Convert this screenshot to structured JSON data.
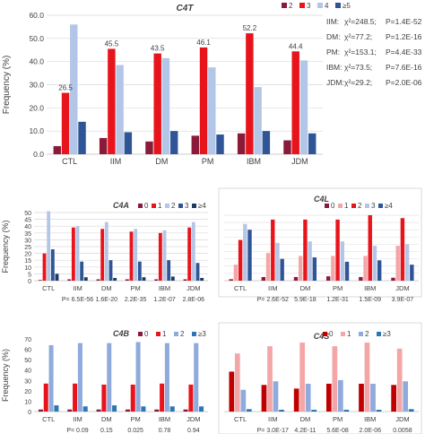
{
  "chart_data": [
    {
      "type": "bar",
      "title": "C4T",
      "ylabel": "Frequency (%)",
      "xlabel": "",
      "ylim": [
        0,
        60
      ],
      "yticks": [
        "0.0",
        "10.0",
        "20.0",
        "30.0",
        "40.0",
        "50.0",
        "60.0"
      ],
      "categories": [
        "CTL",
        "IIM",
        "DM",
        "PM",
        "IBM",
        "JDM"
      ],
      "legend_position": "top-right",
      "series": [
        {
          "name": "2",
          "color": "#8b1a3a",
          "values": [
            3.5,
            7.0,
            5.5,
            8.0,
            9.0,
            6.0
          ]
        },
        {
          "name": "3",
          "color": "#e8141c",
          "values": [
            26.5,
            45.5,
            43.5,
            46.1,
            52.2,
            44.4
          ]
        },
        {
          "name": "4",
          "color": "#b4c6e7",
          "values": [
            56.0,
            38.5,
            41.5,
            37.5,
            29.0,
            40.5
          ]
        },
        {
          "name": "≥5",
          "color": "#2f5597",
          "values": [
            14.0,
            9.5,
            10.0,
            8.5,
            10.0,
            9.0
          ]
        }
      ],
      "data_labels": [
        "26.5",
        "45.5",
        "43.5",
        "46.1",
        "52.2",
        "44.4"
      ],
      "annotations": [
        {
          "group": "IIM:",
          "chi": "χ²=248.5;",
          "p": "P=1.4E-52"
        },
        {
          "group": "DM:",
          "chi": "χ²=77.2;",
          "p": "P=1.2E-16"
        },
        {
          "group": "PM:",
          "chi": "χ²=153.1;",
          "p": "P=4.4E-33"
        },
        {
          "group": "IBM:",
          "chi": "χ²=73.5;",
          "p": "P=7.6E-16"
        },
        {
          "group": "JDM:",
          "chi": "χ²=29.2;",
          "p": "P=2.0E-06"
        }
      ]
    },
    {
      "type": "bar",
      "title": "C4A",
      "ylabel": "Frequency (%)",
      "ylim": [
        0,
        50
      ],
      "yticks": [
        "0",
        "5",
        "10",
        "15",
        "20",
        "25",
        "30",
        "35",
        "40",
        "45",
        "50"
      ],
      "categories": [
        "CTL",
        "IIM",
        "DM",
        "PM",
        "IBM",
        "JDM"
      ],
      "legend_position": "top-right",
      "series": [
        {
          "name": "0",
          "color": "#8b1a3a",
          "values": [
            0.5,
            1,
            1,
            1,
            1,
            1
          ]
        },
        {
          "name": "1",
          "color": "#e8141c",
          "values": [
            20,
            39,
            38,
            36,
            35,
            39
          ]
        },
        {
          "name": "2",
          "color": "#b4c6e7",
          "values": [
            51,
            40,
            43,
            38,
            37,
            43
          ]
        },
        {
          "name": "3",
          "color": "#2f5597",
          "values": [
            23,
            14,
            15,
            14,
            15,
            13
          ]
        },
        {
          "name": "≥4",
          "color": "#1f3864",
          "values": [
            5,
            2.5,
            2,
            2.5,
            3,
            2
          ]
        }
      ],
      "pvalues": [
        "P= 6.5E-56",
        "1.6E-20",
        "2.2E-35",
        "1.2E-07",
        "2.8E-06"
      ]
    },
    {
      "type": "bar",
      "title": "C4L",
      "ylim": [
        0,
        45
      ],
      "categories": [
        "CTL",
        "IIM",
        "DM",
        "PM",
        "IBM",
        "JDM"
      ],
      "legend_position": "top-right",
      "series": [
        {
          "name": "0",
          "color": "#8b1a3a",
          "values": [
            1,
            2.5,
            2.5,
            3,
            2.5,
            2
          ]
        },
        {
          "name": "1",
          "color": "#f4a6a6",
          "values": [
            11,
            19,
            17,
            17,
            17,
            24
          ]
        },
        {
          "name": "2",
          "color": "#e8141c",
          "values": [
            28,
            42,
            42,
            42,
            45,
            43
          ]
        },
        {
          "name": "3",
          "color": "#b4c6e7",
          "values": [
            39,
            26,
            27,
            27,
            24,
            25
          ]
        },
        {
          "name": "≥4",
          "color": "#2f5597",
          "values": [
            35,
            15,
            16,
            13,
            14,
            11
          ]
        }
      ],
      "pvalues": [
        "P= 2.6E-52",
        "5.9E-18",
        "1.2E-31",
        "1.5E-09",
        "3.9E-07"
      ]
    },
    {
      "type": "bar",
      "title": "C4B",
      "ylabel": "Frequency (%)",
      "ylim": [
        0,
        70
      ],
      "yticks": [
        "0",
        "10",
        "20",
        "30",
        "40",
        "50",
        "60",
        "70"
      ],
      "categories": [
        "CTL",
        "IIM",
        "DM",
        "PM",
        "IBM",
        "JDM"
      ],
      "legend_position": "top-right",
      "series": [
        {
          "name": "0",
          "color": "#8b1a3a",
          "values": [
            2,
            2,
            2,
            2,
            2,
            2
          ]
        },
        {
          "name": "1",
          "color": "#e8141c",
          "values": [
            27,
            27,
            26,
            26,
            27,
            26
          ]
        },
        {
          "name": "2",
          "color": "#8faadc",
          "values": [
            64,
            66,
            66,
            67,
            66,
            66
          ]
        },
        {
          "name": "≥3",
          "color": "#2e75b6",
          "values": [
            6,
            5,
            6,
            5,
            5,
            5
          ]
        }
      ],
      "pvalues": [
        "P= 0.09",
        "0.15",
        "0.025",
        "0.78",
        "0.94"
      ]
    },
    {
      "type": "bar",
      "title": "C4S",
      "ylim": [
        0,
        60
      ],
      "categories": [
        "CTL",
        "IIM",
        "DM",
        "PM",
        "IBM",
        "JDM"
      ],
      "legend_position": "top-right",
      "series": [
        {
          "name": "0",
          "color": "#c00000",
          "values": [
            33,
            22,
            19,
            23,
            23,
            22
          ]
        },
        {
          "name": "1",
          "color": "#f4a6a6",
          "values": [
            48,
            54,
            57,
            54,
            57,
            52
          ]
        },
        {
          "name": "2",
          "color": "#8faadc",
          "values": [
            18,
            25,
            23,
            26,
            23,
            25
          ]
        },
        {
          "name": "≥3",
          "color": "#2e75b6",
          "values": [
            2,
            1.5,
            1.5,
            1.5,
            1.5,
            2
          ]
        }
      ],
      "pvalues": [
        "P= 3.0E-17",
        "4.2E-11",
        "5.6E-08",
        "2.0E-06",
        "0.0058"
      ]
    }
  ]
}
